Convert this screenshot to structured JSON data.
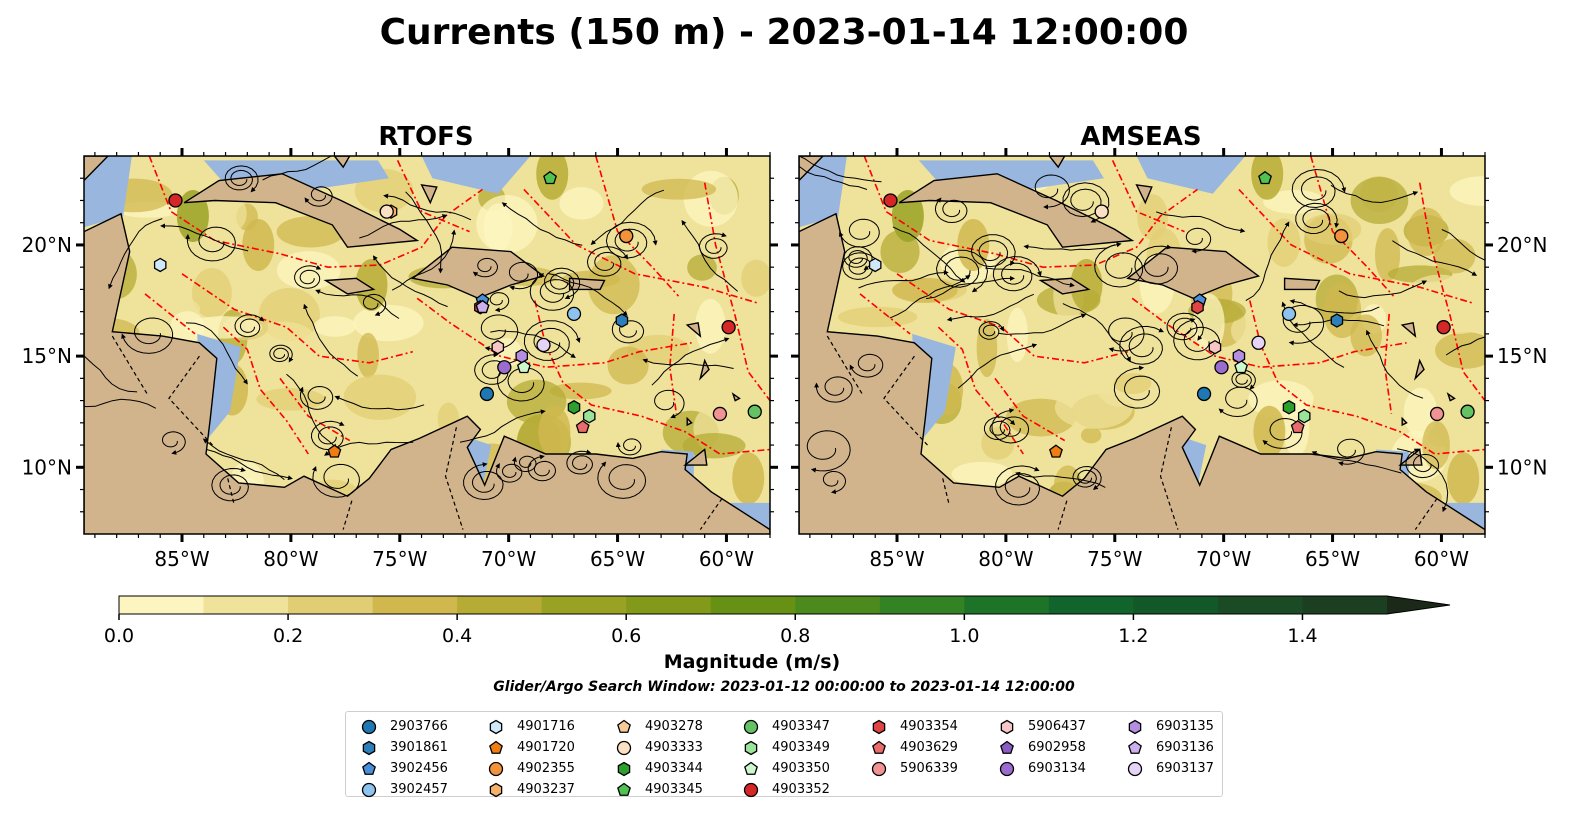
{
  "figure": {
    "title": "Currents (150 m) - 2023-01-14 12:00:00",
    "search_window": "Glider/Argo Search Window: 2023-01-12 00:00:00 to 2023-01-14 12:00:00"
  },
  "colors": {
    "land": "#d2b48c",
    "shallow_water": "#98b6de",
    "eez_lines": "#ff0000",
    "streamlines": "#000000",
    "colormap": [
      "#fdf5c0",
      "#efe29a",
      "#e1cd73",
      "#d0b84f",
      "#b6ab35",
      "#9aa224",
      "#83991a",
      "#679114",
      "#4d8a1d",
      "#338223",
      "#1d7327",
      "#11652c",
      "#135829",
      "#1a4b25",
      "#1d3f21",
      "#1b2a18"
    ]
  },
  "chart_data": [
    {
      "type": "map",
      "panel": "RTOFS",
      "title": "RTOFS",
      "xlim": [
        -89.5,
        -58
      ],
      "ylim": [
        7,
        24
      ],
      "x_ticks": [
        "85°W",
        "80°W",
        "75°W",
        "70°W",
        "65°W",
        "60°W"
      ],
      "x_tick_values": [
        -85,
        -80,
        -75,
        -70,
        -65,
        -60
      ],
      "y_ticks": [
        "20°N",
        "15°N",
        "10°N"
      ],
      "y_tick_values": [
        20,
        15,
        10
      ],
      "y_labels_side": "left",
      "markers": [
        {
          "id": "2903766",
          "lon": -71.0,
          "lat": 13.3
        },
        {
          "id": "3901861",
          "lon": -64.8,
          "lat": 16.6
        },
        {
          "id": "3902456",
          "lon": -71.2,
          "lat": 17.5
        },
        {
          "id": "3902457",
          "lon": -67.0,
          "lat": 16.9
        },
        {
          "id": "4901716",
          "lon": -86.0,
          "lat": 19.1
        },
        {
          "id": "4901720",
          "lon": -78.0,
          "lat": 10.7
        },
        {
          "id": "4902355",
          "lon": -64.6,
          "lat": 20.4
        },
        {
          "id": "4903237",
          "lon": -75.4,
          "lat": 21.5
        },
        {
          "id": "4903278",
          "lon": -75.6,
          "lat": 21.5
        },
        {
          "id": "4903333",
          "lon": -75.6,
          "lat": 21.5
        },
        {
          "id": "4903344",
          "lon": -67.0,
          "lat": 12.7
        },
        {
          "id": "4903345",
          "lon": -68.1,
          "lat": 23.0
        },
        {
          "id": "4903347",
          "lon": -58.7,
          "lat": 12.5
        },
        {
          "id": "4903349",
          "lon": -66.3,
          "lat": 12.3
        },
        {
          "id": "4903350",
          "lon": -69.3,
          "lat": 14.5
        },
        {
          "id": "4903352",
          "lon": -59.9,
          "lat": 16.3
        },
        {
          "id": "4903354",
          "lon": -71.3,
          "lat": 17.2
        },
        {
          "id": "4903629",
          "lon": -66.6,
          "lat": 11.8
        },
        {
          "id": "5906339",
          "lon": -60.3,
          "lat": 12.4
        },
        {
          "id": "5906437",
          "lon": -70.5,
          "lat": 15.4
        },
        {
          "id": "5906437b",
          "lon": -85.3,
          "lat": 22.0
        },
        {
          "id": "6902958",
          "lon": -71.2,
          "lat": 17.2
        },
        {
          "id": "6903134",
          "lon": -70.2,
          "lat": 14.5
        },
        {
          "id": "6903135",
          "lon": -69.4,
          "lat": 15.0
        },
        {
          "id": "6903136",
          "lon": -71.2,
          "lat": 17.2
        },
        {
          "id": "6903137",
          "lon": -68.4,
          "lat": 15.5
        }
      ]
    },
    {
      "type": "map",
      "panel": "AMSEAS",
      "title": "AMSEAS",
      "xlim": [
        -89.5,
        -58
      ],
      "ylim": [
        7,
        24
      ],
      "x_ticks": [
        "85°W",
        "80°W",
        "75°W",
        "70°W",
        "65°W",
        "60°W"
      ],
      "x_tick_values": [
        -85,
        -80,
        -75,
        -70,
        -65,
        -60
      ],
      "y_ticks": [
        "20°N",
        "15°N",
        "10°N"
      ],
      "y_tick_values": [
        20,
        15,
        10
      ],
      "y_labels_side": "right",
      "markers": [
        {
          "id": "2903766",
          "lon": -70.9,
          "lat": 13.3
        },
        {
          "id": "3901861",
          "lon": -64.8,
          "lat": 16.6
        },
        {
          "id": "3902456",
          "lon": -71.1,
          "lat": 17.5
        },
        {
          "id": "3902457",
          "lon": -67.0,
          "lat": 16.9
        },
        {
          "id": "4901716",
          "lon": -86.0,
          "lat": 19.1
        },
        {
          "id": "4901720",
          "lon": -77.7,
          "lat": 10.7
        },
        {
          "id": "4902355",
          "lon": -64.6,
          "lat": 20.4
        },
        {
          "id": "4903278",
          "lon": -75.6,
          "lat": 21.5
        },
        {
          "id": "4903333",
          "lon": -75.6,
          "lat": 21.5
        },
        {
          "id": "4903344",
          "lon": -67.0,
          "lat": 12.7
        },
        {
          "id": "4903345",
          "lon": -68.1,
          "lat": 23.0
        },
        {
          "id": "4903347",
          "lon": -58.8,
          "lat": 12.5
        },
        {
          "id": "4903349",
          "lon": -66.3,
          "lat": 12.3
        },
        {
          "id": "4903350",
          "lon": -69.2,
          "lat": 14.5
        },
        {
          "id": "4903352",
          "lon": -59.9,
          "lat": 16.3
        },
        {
          "id": "4903354",
          "lon": -71.2,
          "lat": 17.2
        },
        {
          "id": "4903629",
          "lon": -66.6,
          "lat": 11.8
        },
        {
          "id": "5906339",
          "lon": -60.2,
          "lat": 12.4
        },
        {
          "id": "5906437",
          "lon": -70.4,
          "lat": 15.4
        },
        {
          "id": "5906437b",
          "lon": -85.3,
          "lat": 22.0
        },
        {
          "id": "6903134",
          "lon": -70.1,
          "lat": 14.5
        },
        {
          "id": "6903135",
          "lon": -69.3,
          "lat": 15.0
        },
        {
          "id": "6903137",
          "lon": -68.4,
          "lat": 15.6
        }
      ]
    },
    {
      "type": "colorbar",
      "label": "Magnitude (m/s)",
      "range": [
        0.0,
        1.5
      ],
      "extend": "max",
      "ticks": [
        0.0,
        0.2,
        0.4,
        0.6,
        0.8,
        1.0,
        1.2,
        1.4
      ],
      "tick_labels": [
        "0.0",
        "0.2",
        "0.4",
        "0.6",
        "0.8",
        "1.0",
        "1.2",
        "1.4"
      ]
    }
  ],
  "legend": {
    "placement": "bottom-center",
    "columns": [
      [
        {
          "label": "2903766",
          "marker": "circle",
          "color": "#1f77b4"
        },
        {
          "label": "3901861",
          "marker": "hexagon",
          "color": "#2c7fb8"
        },
        {
          "label": "3902456",
          "marker": "pentagon",
          "color": "#4a90d9"
        },
        {
          "label": "3902457",
          "marker": "circle",
          "color": "#8ec3ee"
        }
      ],
      [
        {
          "label": "4901716",
          "marker": "hexagon",
          "color": "#cfe9fb"
        },
        {
          "label": "4901720",
          "marker": "pentagon",
          "color": "#f07c12"
        },
        {
          "label": "4902355",
          "marker": "circle",
          "color": "#f2923a"
        },
        {
          "label": "4903237",
          "marker": "hexagon",
          "color": "#f6b06b"
        }
      ],
      [
        {
          "label": "4903278",
          "marker": "pentagon",
          "color": "#f8cc99"
        },
        {
          "label": "4903333",
          "marker": "circle",
          "color": "#fbe1c4"
        },
        {
          "label": "4903344",
          "marker": "hexagon",
          "color": "#2ca02c"
        },
        {
          "label": "4903345",
          "marker": "pentagon",
          "color": "#4fc24f"
        }
      ],
      [
        {
          "label": "4903347",
          "marker": "circle",
          "color": "#63c263"
        },
        {
          "label": "4903349",
          "marker": "hexagon",
          "color": "#9be39b"
        },
        {
          "label": "4903350",
          "marker": "pentagon",
          "color": "#cdf7cd"
        },
        {
          "label": "4903352",
          "marker": "circle",
          "color": "#d62728"
        }
      ],
      [
        {
          "label": "4903354",
          "marker": "hexagon",
          "color": "#e04444"
        },
        {
          "label": "4903629",
          "marker": "pentagon",
          "color": "#ea6b6b"
        },
        {
          "label": "5906339",
          "marker": "circle",
          "color": "#f29393"
        }
      ],
      [
        {
          "label": "5906437",
          "marker": "hexagon",
          "color": "#f9c6c6"
        },
        {
          "label": "6902958",
          "marker": "pentagon",
          "color": "#8a5cc4"
        },
        {
          "label": "6903134",
          "marker": "circle",
          "color": "#9a6cd0"
        }
      ],
      [
        {
          "label": "6903135",
          "marker": "hexagon",
          "color": "#b48ee0"
        },
        {
          "label": "6903136",
          "marker": "pentagon",
          "color": "#ccb0ee"
        },
        {
          "label": "6903137",
          "marker": "circle",
          "color": "#e6d4f7"
        }
      ]
    ]
  }
}
